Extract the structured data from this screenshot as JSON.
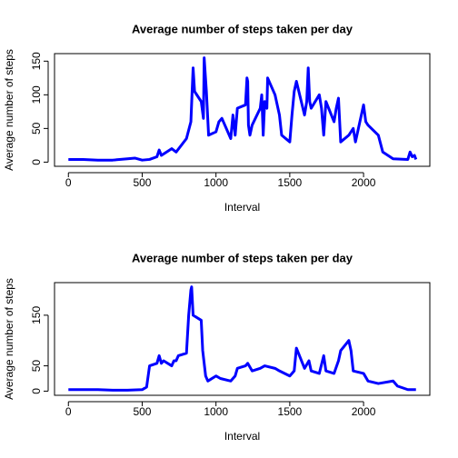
{
  "chart_data": [
    {
      "type": "line",
      "title": "Average number of steps taken per day",
      "xlabel": "Interval",
      "ylabel": "Average number of steps",
      "x": [
        0,
        100,
        200,
        300,
        400,
        450,
        500,
        550,
        600,
        615,
        630,
        700,
        730,
        800,
        830,
        845,
        855,
        900,
        915,
        920,
        935,
        950,
        1000,
        1020,
        1040,
        1050,
        1100,
        1115,
        1130,
        1145,
        1200,
        1210,
        1215,
        1220,
        1230,
        1245,
        1300,
        1310,
        1320,
        1330,
        1345,
        1350,
        1400,
        1415,
        1430,
        1445,
        1500,
        1515,
        1530,
        1545,
        1600,
        1615,
        1625,
        1635,
        1645,
        1700,
        1715,
        1730,
        1745,
        1800,
        1815,
        1830,
        1845,
        1900,
        1930,
        1945,
        2000,
        2015,
        2030,
        2100,
        2130,
        2200,
        2300,
        2315,
        2330,
        2345,
        2355
      ],
      "series": [
        {
          "name": "steps",
          "color": "#0000ff",
          "values": [
            4,
            4,
            3,
            3,
            5,
            6,
            3,
            4,
            8,
            18,
            10,
            20,
            15,
            35,
            60,
            140,
            105,
            90,
            65,
            155,
            105,
            40,
            45,
            60,
            65,
            60,
            35,
            70,
            40,
            80,
            85,
            125,
            120,
            55,
            40,
            55,
            80,
            100,
            40,
            90,
            80,
            125,
            100,
            85,
            70,
            40,
            30,
            70,
            105,
            120,
            70,
            90,
            140,
            90,
            80,
            100,
            80,
            40,
            90,
            60,
            80,
            95,
            30,
            40,
            50,
            30,
            85,
            60,
            55,
            40,
            15,
            5,
            4,
            15,
            8,
            10,
            4
          ]
        }
      ],
      "xlim": [
        -94,
        2449
      ],
      "xticks": [
        0,
        500,
        1000,
        1500,
        2000
      ],
      "ylim": [
        -6.2,
        161.2
      ],
      "yticks": [
        0,
        50,
        100,
        150
      ]
    },
    {
      "type": "line",
      "title": "Average number of steps taken per day",
      "xlabel": "Interval",
      "ylabel": "Average number of steps",
      "x": [
        0,
        100,
        200,
        300,
        400,
        500,
        530,
        550,
        600,
        615,
        630,
        645,
        700,
        715,
        730,
        745,
        800,
        815,
        830,
        835,
        845,
        900,
        910,
        930,
        945,
        1000,
        1030,
        1100,
        1130,
        1145,
        1200,
        1215,
        1245,
        1300,
        1330,
        1400,
        1430,
        1500,
        1530,
        1545,
        1600,
        1630,
        1645,
        1700,
        1730,
        1745,
        1800,
        1830,
        1845,
        1900,
        1915,
        1930,
        2000,
        2030,
        2100,
        2200,
        2230,
        2300,
        2355
      ],
      "series": [
        {
          "name": "steps",
          "color": "#0000ff",
          "values": [
            3,
            3,
            3,
            2,
            2,
            3,
            8,
            50,
            55,
            70,
            55,
            60,
            50,
            60,
            60,
            70,
            75,
            150,
            200,
            206,
            150,
            140,
            80,
            30,
            20,
            30,
            25,
            20,
            30,
            45,
            50,
            55,
            40,
            45,
            50,
            45,
            40,
            30,
            40,
            85,
            45,
            60,
            40,
            35,
            70,
            40,
            35,
            60,
            80,
            100,
            80,
            40,
            35,
            20,
            15,
            20,
            10,
            3,
            3
          ]
        }
      ],
      "xlim": [
        -94,
        2449
      ],
      "xticks": [
        0,
        500,
        1000,
        1500,
        2000
      ],
      "ylim": [
        -8.2,
        214.4
      ],
      "yticks": [
        0,
        50,
        150
      ]
    }
  ]
}
